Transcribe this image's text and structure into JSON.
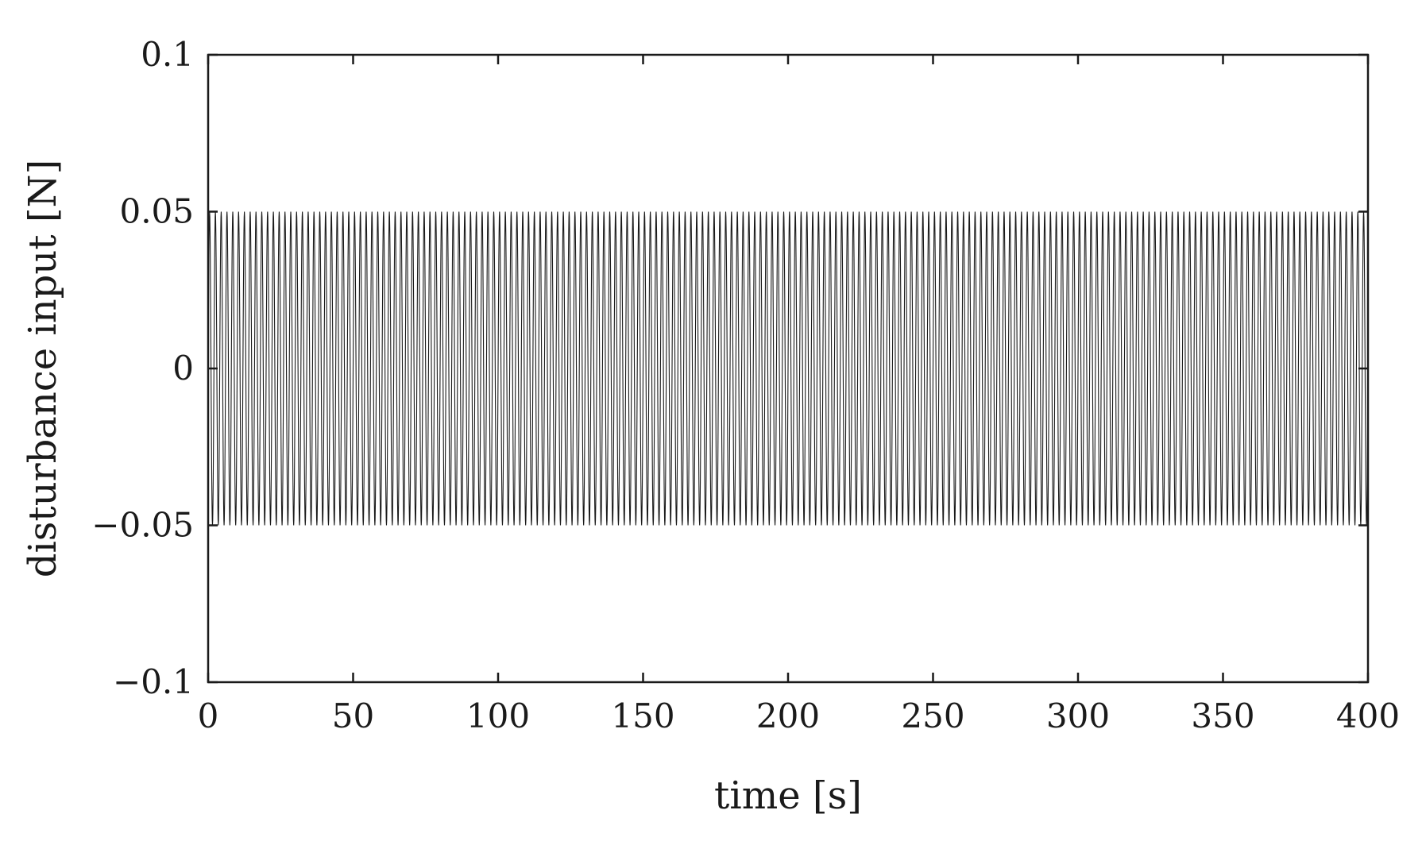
{
  "chart_data": {
    "type": "line",
    "xlabel": "time [s]",
    "ylabel": "disturbance input [N]",
    "xlim": [
      0,
      400
    ],
    "ylim": [
      -0.1,
      0.1
    ],
    "x_ticks": [
      0,
      50,
      100,
      150,
      200,
      250,
      300,
      350,
      400
    ],
    "x_tick_labels": [
      "0",
      "50",
      "100",
      "150",
      "200",
      "250",
      "300",
      "350",
      "400"
    ],
    "y_ticks": [
      0.1,
      0.05,
      0,
      -0.05,
      -0.1
    ],
    "y_tick_labels": [
      "0.1",
      "0.05",
      "0",
      "−0.05",
      "−0.1"
    ],
    "grid": false,
    "series": [
      {
        "type": "sinusoid",
        "amplitude": 0.05,
        "offset": 0,
        "period": 2,
        "t_start": 0,
        "t_end": 400,
        "color": "#1a1a1a"
      }
    ]
  }
}
